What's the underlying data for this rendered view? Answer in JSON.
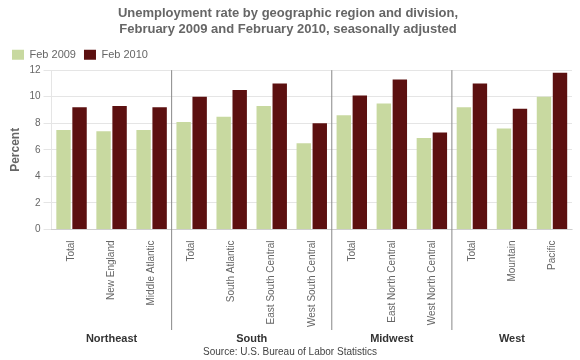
{
  "chart_data": {
    "type": "bar",
    "title": "Unemployment rate by geographic region and division,\nFebruary 2009 and February 2010, seasonally adjusted",
    "ylabel": "Percent",
    "categories": [
      "Total",
      "New England",
      "Middle Atlantic",
      "Total",
      "South Atlantic",
      "East South Central",
      "West South Central",
      "Total",
      "East North Central",
      "West North Central",
      "Total",
      "Mountain",
      "Pacific"
    ],
    "groups": [
      "Northeast",
      "South",
      "Midwest",
      "West"
    ],
    "series": [
      {
        "name": "Feb 2009",
        "color": "#c8d9a0",
        "values": [
          7.5,
          7.4,
          7.5,
          8.1,
          8.5,
          9.3,
          6.5,
          8.6,
          9.5,
          6.9,
          9.2,
          7.6,
          10.0
        ]
      },
      {
        "name": "Feb 2010",
        "color": "#5c1010",
        "values": [
          9.2,
          9.3,
          9.2,
          10.0,
          10.5,
          11.0,
          8.0,
          10.1,
          11.3,
          7.3,
          11.0,
          9.1,
          11.8
        ]
      }
    ],
    "ylim": [
      0,
      12
    ],
    "yticks": [
      0,
      2,
      4,
      6,
      8,
      10,
      12
    ],
    "grid": true,
    "legend": "upper left",
    "annotations": [
      "Source: U.S. Bureau of Labor Statistics"
    ]
  }
}
